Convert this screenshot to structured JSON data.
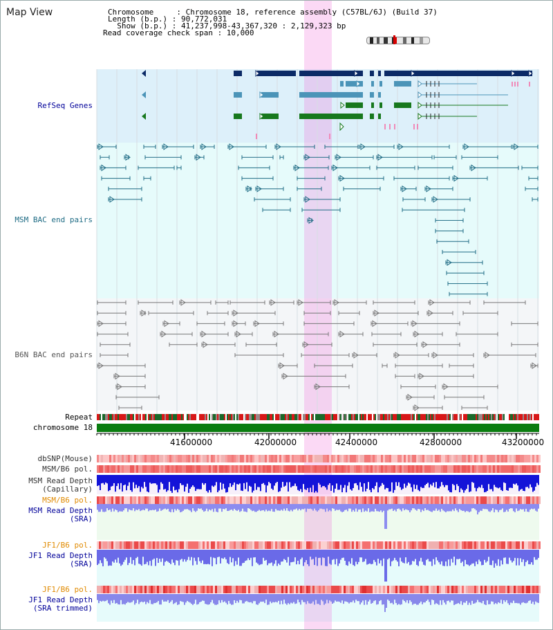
{
  "view_title": "Map View",
  "info": {
    "chromosome_line": "Chromosome     : Chromosome 18, reference assembly (C57BL/6J) (Build 37)",
    "length_line": "Length (b.p.) : 90,772,031",
    "show_line": "  Show (b.p.) : 41,237,998-43,367,320 : 2,129,323 bp",
    "coverage_line": "Read coverage check span : 10,000"
  },
  "tracks": {
    "refseq": "RefSeq Genes",
    "msm_bac": "MSM BAC end pairs",
    "b6n_bac": "B6N BAC end pairs",
    "repeat": "Repeat",
    "chromosome": "chromosome 18",
    "dbsnp": "dbSNP(Mouse)",
    "msm_b6_pol_1": "MSM/B6 pol.",
    "msm_depth_cap": "MSM Read Depth\n(Capillary)",
    "msm_b6_pol_2": "MSM/B6 pol.",
    "msm_depth_sra": "MSM Read Depth\n(SRA)",
    "jf1_b6_pol_1": "JF1/B6 pol.",
    "jf1_depth_sra": "JF1 Read Depth\n(SRA)",
    "jf1_b6_pol_2": "JF1/B6 pol.",
    "jf1_depth_trim": "JF1 Read Depth\n(SRA trimmed)"
  },
  "axis_ticks": [
    "41600000",
    "42000000",
    "42400000",
    "42800000",
    "43200000"
  ],
  "colors": {
    "refseq_bg": "#ddf0fa",
    "msm_bg": "#e6fbfb",
    "b6n_bg": "#f4f6f8",
    "highlight": "#f6c8ee",
    "navy": "#0b2a66",
    "steel": "#4b94b8",
    "green": "#17781d",
    "teal": "#1e6b84",
    "gray": "#777777",
    "label_blue": "#000099",
    "label_teal": "#1e6b84",
    "label_gray": "#555555",
    "label_orange": "#e08a00"
  }
}
